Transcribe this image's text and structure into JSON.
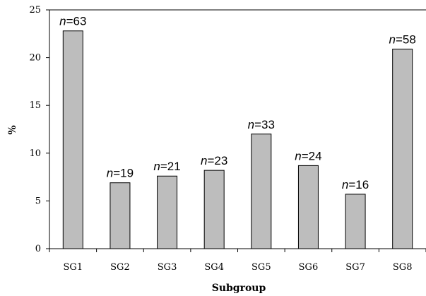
{
  "chart_data": {
    "type": "bar",
    "title": "",
    "xlabel": "Subgroup",
    "ylabel": "%",
    "ylim": [
      0,
      25
    ],
    "yticks": [
      0,
      5,
      10,
      15,
      20,
      25
    ],
    "categories": [
      "SG1",
      "SG2",
      "SG3",
      "SG4",
      "SG5",
      "SG6",
      "SG7",
      "SG8"
    ],
    "values": [
      22.8,
      6.9,
      7.6,
      8.2,
      12.0,
      8.7,
      5.7,
      20.9
    ],
    "data_labels": [
      {
        "prefix": "n",
        "value": "=63"
      },
      {
        "prefix": "n",
        "value": "=19"
      },
      {
        "prefix": "n",
        "value": "=21"
      },
      {
        "prefix": "n",
        "value": "=23"
      },
      {
        "prefix": "n",
        "value": "=33"
      },
      {
        "prefix": "n",
        "value": "=24"
      },
      {
        "prefix": "n",
        "value": "=16"
      },
      {
        "prefix": "n",
        "value": "=58"
      }
    ],
    "grid": false,
    "legend": "none",
    "colors": {
      "bar_fill": "#bdbdbd",
      "bar_stroke": "#000000",
      "axis": "#000000"
    }
  }
}
